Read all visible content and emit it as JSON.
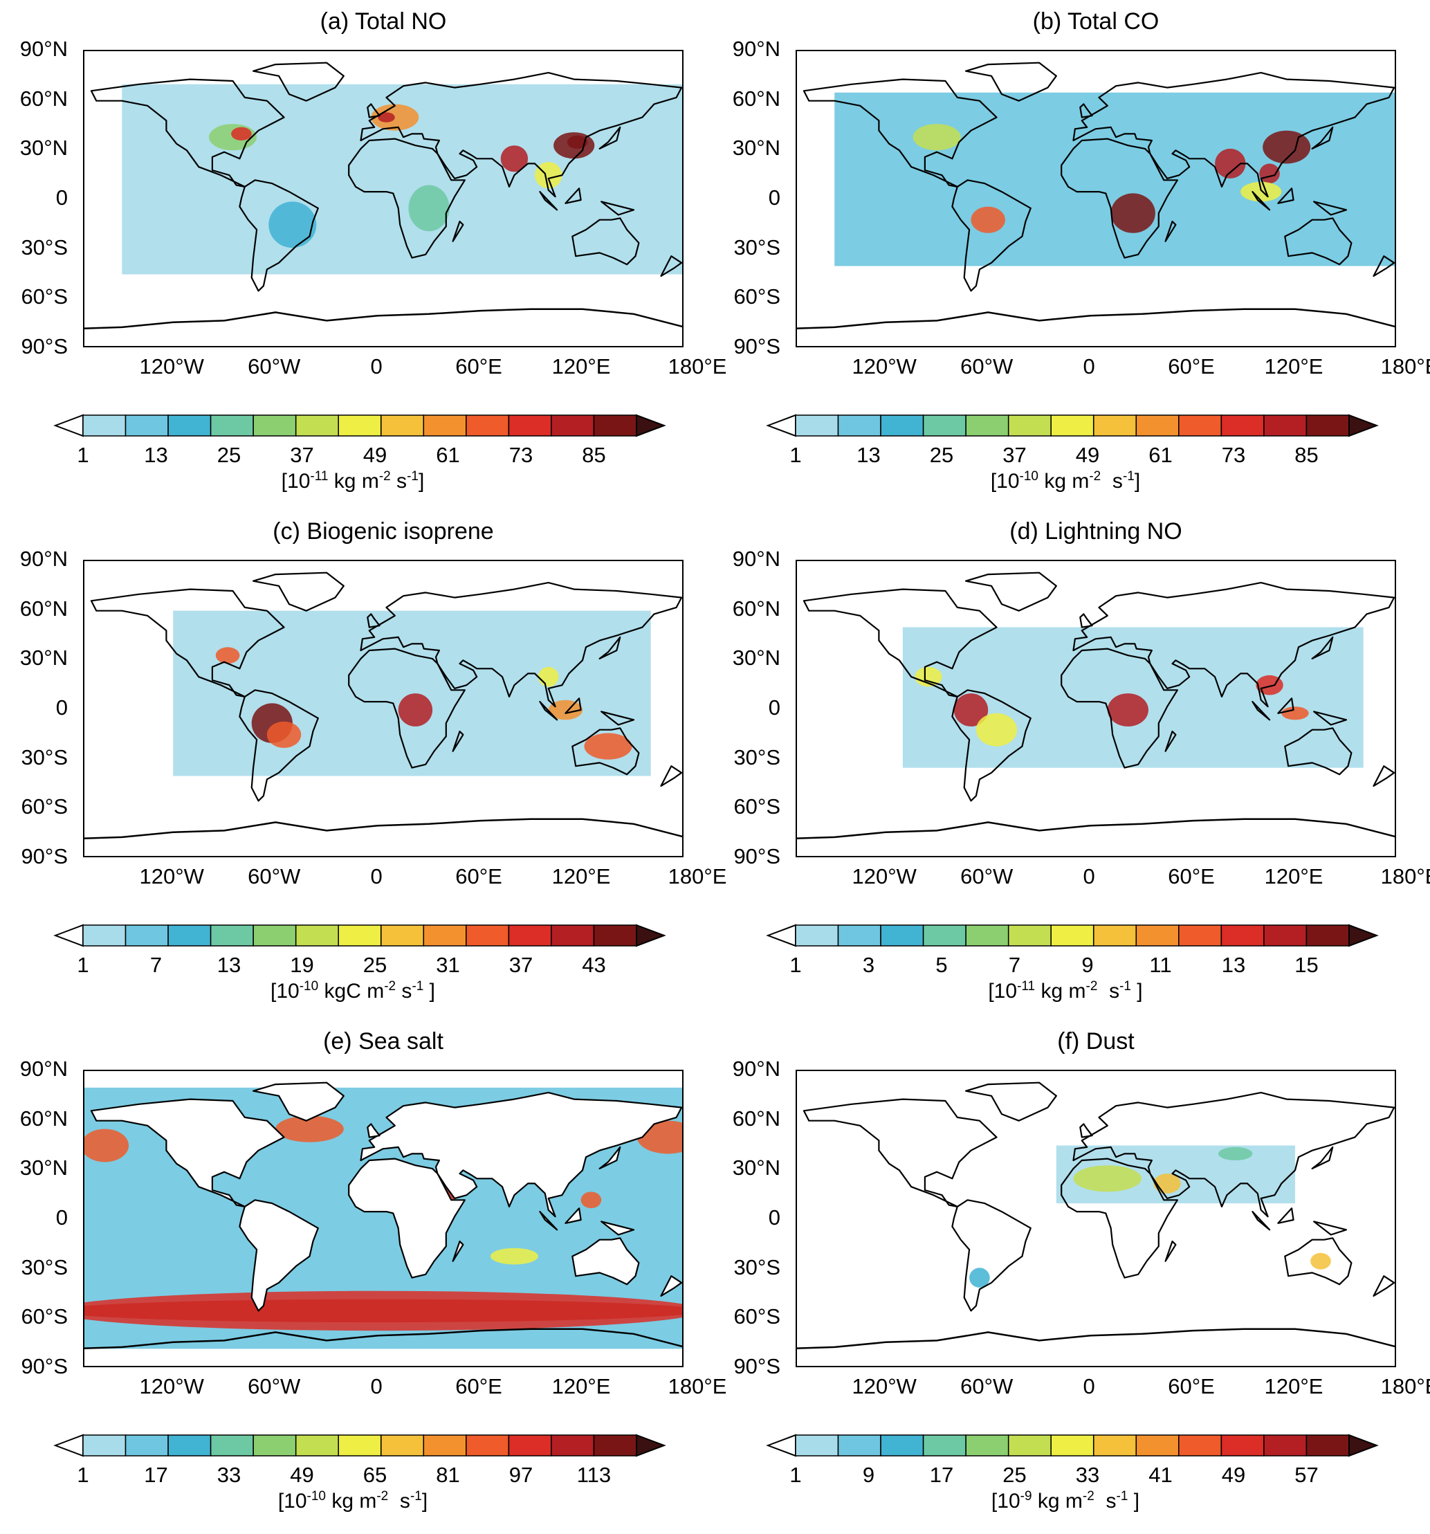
{
  "lat_labels": [
    "90°N",
    "60°N",
    "30°N",
    "0",
    "30°S",
    "60°S",
    "90°S"
  ],
  "lon_labels": [
    "120°W",
    "60°W",
    "0",
    "60°E",
    "120°E",
    "180°E"
  ],
  "palette": [
    "#a8dcea",
    "#6ec6e0",
    "#41b3d3",
    "#6dc9a3",
    "#8ccf70",
    "#c4de52",
    "#eeee44",
    "#f5c13a",
    "#f3912f",
    "#ef5b2a",
    "#dc2d26",
    "#b41f24",
    "#7a1515"
  ],
  "panels": [
    {
      "id": "a",
      "title": "(a) Total NO",
      "ticks": [
        "1",
        "13",
        "25",
        "37",
        "49",
        "61",
        "73",
        "85"
      ],
      "unit_base": "[10",
      "unit_exp": "-11",
      "unit_mid": " kg m",
      "unit_exp2": "-2",
      "unit_end": " s",
      "unit_exp3": "-1",
      "unit_close": "]"
    },
    {
      "id": "b",
      "title": "(b) Total CO",
      "ticks": [
        "1",
        "13",
        "25",
        "37",
        "49",
        "61",
        "73",
        "85"
      ],
      "unit_base": "[10",
      "unit_exp": "-10",
      "unit_mid": " kg m",
      "unit_exp2": "-2",
      "unit_end": "  s",
      "unit_exp3": "-1",
      "unit_close": "]"
    },
    {
      "id": "c",
      "title": "(c) Biogenic isoprene",
      "ticks": [
        "1",
        "7",
        "13",
        "19",
        "25",
        "31",
        "37",
        "43"
      ],
      "unit_base": "[10",
      "unit_exp": "-10",
      "unit_mid": " kgC m",
      "unit_exp2": "-2",
      "unit_end": " s",
      "unit_exp3": "-1",
      "unit_close": " ]"
    },
    {
      "id": "d",
      "title": "(d) Lightning NO",
      "ticks": [
        "1",
        "3",
        "5",
        "7",
        "9",
        "11",
        "13",
        "15"
      ],
      "unit_base": "[10",
      "unit_exp": "-11",
      "unit_mid": " kg m",
      "unit_exp2": "-2",
      "unit_end": "  s",
      "unit_exp3": "-1",
      "unit_close": " ]"
    },
    {
      "id": "e",
      "title": "(e) Sea salt",
      "ticks": [
        "1",
        "17",
        "33",
        "49",
        "65",
        "81",
        "97",
        "113"
      ],
      "unit_base": "[10",
      "unit_exp": "-10",
      "unit_mid": " kg m",
      "unit_exp2": "-2",
      "unit_end": "  s",
      "unit_exp3": "-1",
      "unit_close": "]"
    },
    {
      "id": "f",
      "title": "(f) Dust",
      "ticks": [
        "1",
        "9",
        "17",
        "25",
        "33",
        "41",
        "49",
        "57"
      ],
      "unit_base": "[10",
      "unit_exp": "-9",
      "unit_mid": " kg m",
      "unit_exp2": "-2",
      "unit_end": "  s",
      "unit_exp3": "-1",
      "unit_close": " ]"
    }
  ]
}
